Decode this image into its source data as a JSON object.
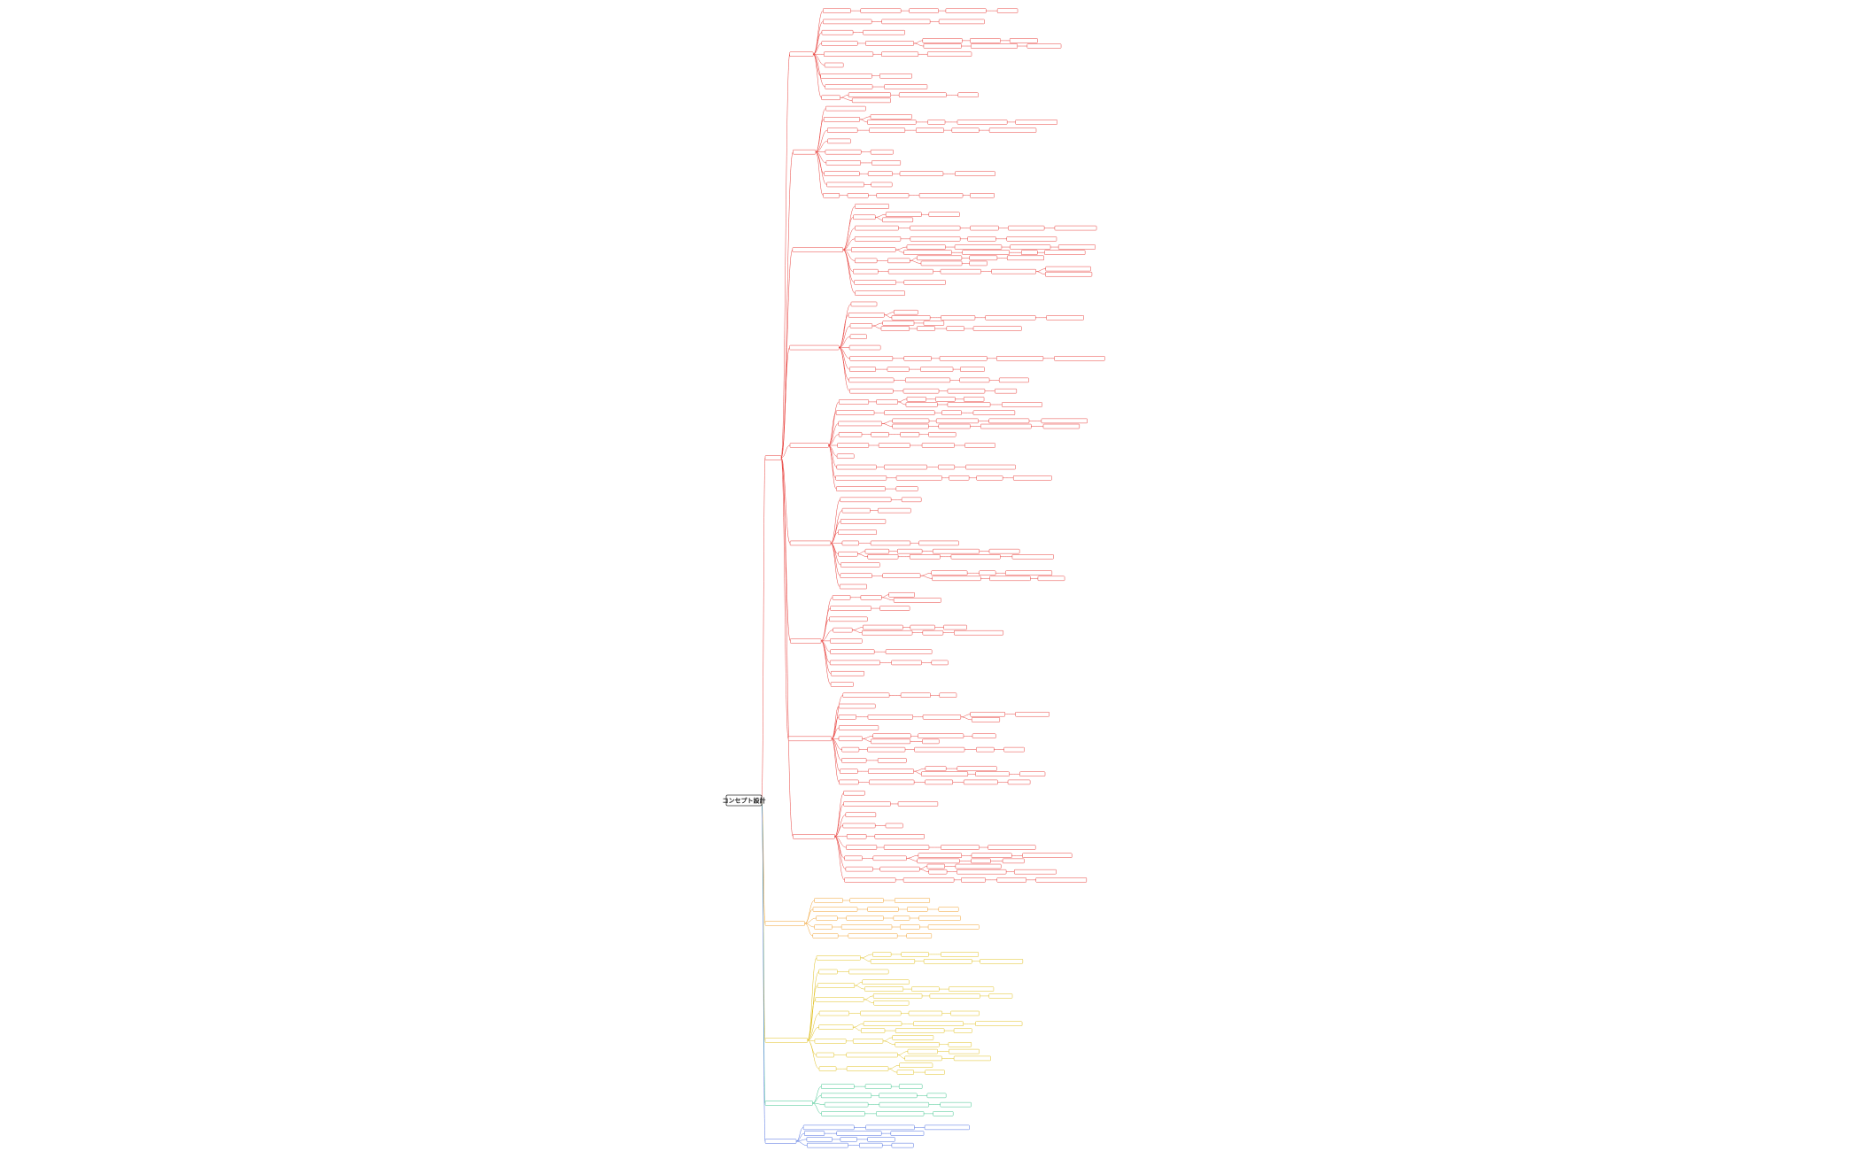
{
  "root": {
    "label": "コンセプト設計"
  }
}
